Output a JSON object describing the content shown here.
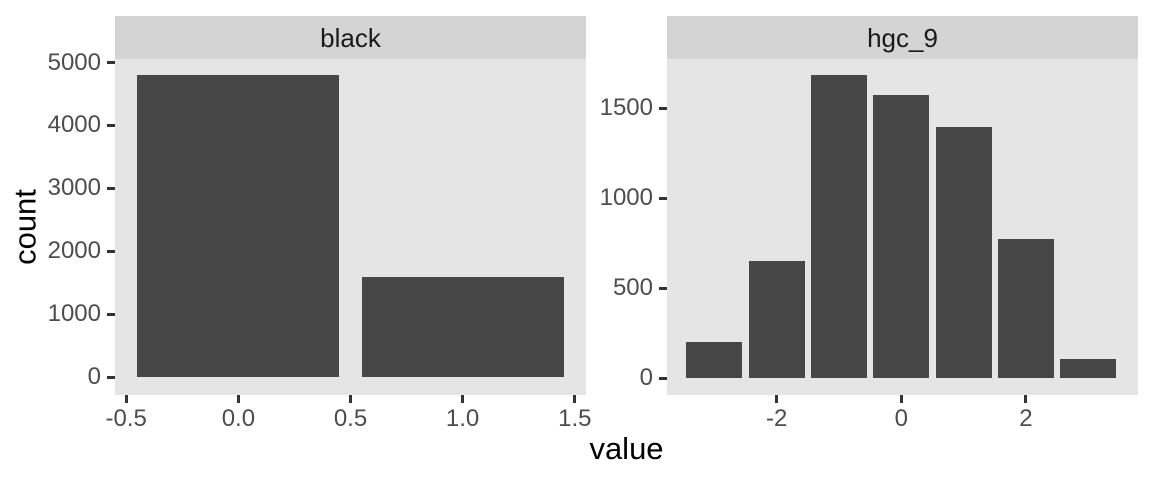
{
  "figure": {
    "x_axis_title": "value",
    "y_axis_title": "count"
  },
  "colors": {
    "background": "#FFFFFF",
    "panel_background": "#E5E5E5",
    "strip_background": "#D4D4D4",
    "bar_fill": "#474747",
    "axis_text": "#4D4D4D",
    "axis_title": "#000000",
    "strip_text": "#1A1A1A",
    "tick_mark": "#333333"
  },
  "chart_data": {
    "type": "bar",
    "style": "faceted histogram (ggplot2-like, two facets, no gridlines)",
    "title": "",
    "xlabel": "value",
    "ylabel": "count",
    "grid": "off",
    "legend": "none",
    "facets": [
      {
        "label": "black",
        "bars": {
          "x": [
            0,
            1
          ],
          "counts": [
            4800,
            1600
          ],
          "bar_width": 0.9
        },
        "x_ticks": {
          "values": [
            -0.5,
            0,
            0.5,
            1,
            1.5
          ],
          "labels": [
            "-0.5",
            "0.0",
            "0.5",
            "1.0",
            "1.5"
          ]
        },
        "y_ticks": {
          "values": [
            0,
            1000,
            2000,
            3000,
            4000,
            5000
          ],
          "labels": [
            "0",
            "1000",
            "2000",
            "3000",
            "4000",
            "5000"
          ]
        },
        "xlim": [
          -0.55,
          1.55
        ],
        "ylim": [
          -280,
          5055
        ]
      },
      {
        "label": "hgc_9",
        "bars": {
          "x": [
            -3,
            -2,
            -1,
            0,
            1,
            2,
            3
          ],
          "counts": [
            200,
            650,
            1685,
            1570,
            1395,
            775,
            105
          ],
          "bar_width": 0.9
        },
        "x_ticks": {
          "values": [
            -2,
            0,
            2
          ],
          "labels": [
            "-2",
            "0",
            "2"
          ]
        },
        "y_ticks": {
          "values": [
            0,
            500,
            1000,
            1500
          ],
          "labels": [
            "0",
            "500",
            "1000",
            "1500"
          ]
        },
        "xlim": [
          -3.76,
          3.8
        ],
        "ylim": [
          -94,
          1772
        ]
      }
    ]
  }
}
